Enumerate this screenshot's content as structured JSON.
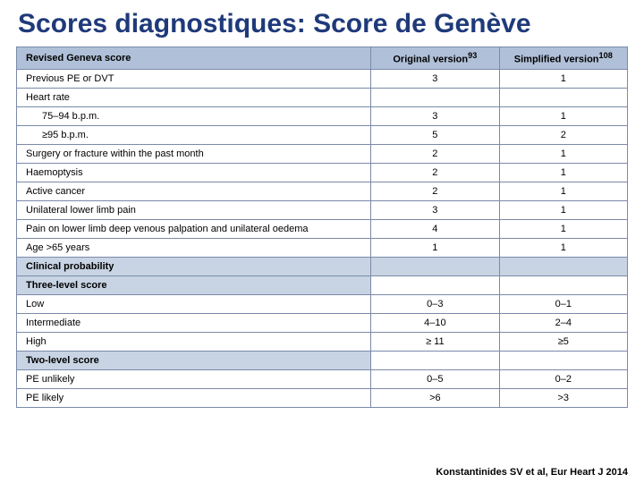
{
  "title": "Scores diagnostiques: Score de Genève",
  "headers": {
    "main": "Revised Geneva score",
    "col_orig": "Original version",
    "sup_orig": "93",
    "col_simp": "Simplified version",
    "sup_simp": "108"
  },
  "rows": [
    {
      "label": "Previous PE or DVT",
      "orig": "3",
      "simp": "1",
      "cls": ""
    },
    {
      "label": "Heart rate",
      "orig": "",
      "simp": "",
      "cls": "",
      "sub": true
    },
    {
      "label": "75–94 b.p.m.",
      "orig": "3",
      "simp": "1",
      "cls": "indent"
    },
    {
      "label": "≥95 b.p.m.",
      "orig": "5",
      "simp": "2",
      "cls": "indent"
    },
    {
      "label": "Surgery or fracture within the past month",
      "orig": "2",
      "simp": "1",
      "cls": ""
    },
    {
      "label": "Haemoptysis",
      "orig": "2",
      "simp": "1",
      "cls": ""
    },
    {
      "label": "Active cancer",
      "orig": "2",
      "simp": "1",
      "cls": ""
    },
    {
      "label": "Unilateral lower limb pain",
      "orig": "3",
      "simp": "1",
      "cls": ""
    },
    {
      "label": "Pain on lower limb deep venous palpation and unilateral oedema",
      "orig": "4",
      "simp": "1",
      "cls": ""
    },
    {
      "label": "Age >65 years",
      "orig": "1",
      "simp": "1",
      "cls": ""
    }
  ],
  "section1": "Clinical probability",
  "section2": "Three-level score",
  "levels3": [
    {
      "label": "Low",
      "orig": "0–3",
      "simp": "0–1"
    },
    {
      "label": "Intermediate",
      "orig": "4–10",
      "simp": "2–4"
    },
    {
      "label": "High",
      "orig": "≥ 11",
      "simp": "≥5"
    }
  ],
  "section3": "Two-level score",
  "levels2": [
    {
      "label": "PE unlikely",
      "orig": "0–5",
      "simp": "0–2"
    },
    {
      "label": "PE likely",
      "orig": ">6",
      "simp": ">3"
    }
  ],
  "citation": "Konstantinides SV et al, Eur Heart J 2014"
}
